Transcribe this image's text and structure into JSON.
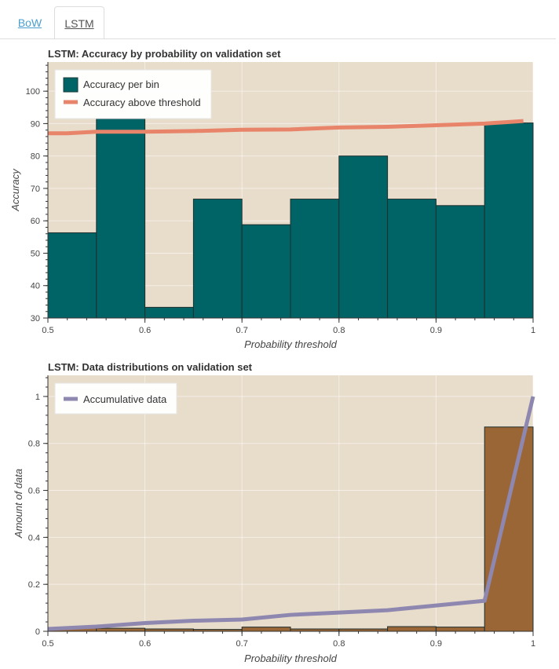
{
  "tabs": [
    {
      "label": "BoW",
      "active": false
    },
    {
      "label": "LSTM",
      "active": true
    }
  ],
  "chart_data": [
    {
      "type": "bar",
      "title": "LSTM: Accuracy by probability on validation set",
      "xlabel": "Probability threshold",
      "ylabel": "Accuracy",
      "xlim": [
        0.5,
        1.0
      ],
      "ylim": [
        30,
        109
      ],
      "xticks": [
        "0.5",
        "0.6",
        "0.7",
        "0.8",
        "0.9",
        "1"
      ],
      "yticks": [
        "30",
        "40",
        "50",
        "60",
        "70",
        "80",
        "90",
        "100"
      ],
      "grid": true,
      "background": "#e8dccb",
      "legend_position": "top-left",
      "series": [
        {
          "name": "Accuracy per bin",
          "kind": "bar",
          "color": "#006466",
          "bins": [
            [
              0.5,
              0.55
            ],
            [
              0.55,
              0.6
            ],
            [
              0.6,
              0.65
            ],
            [
              0.65,
              0.7
            ],
            [
              0.7,
              0.75
            ],
            [
              0.75,
              0.8
            ],
            [
              0.8,
              0.85
            ],
            [
              0.85,
              0.9
            ],
            [
              0.9,
              0.95
            ],
            [
              0.95,
              1.0
            ]
          ],
          "values": [
            56.3,
            91.5,
            33.3,
            66.7,
            58.8,
            66.7,
            80.0,
            66.7,
            64.7,
            90.2
          ]
        },
        {
          "name": "Accuracy above threshold",
          "kind": "line",
          "color": "#e8846a",
          "x": [
            0.5,
            0.52,
            0.55,
            0.6,
            0.65,
            0.7,
            0.75,
            0.8,
            0.85,
            0.9,
            0.95,
            0.99
          ],
          "y": [
            87.0,
            87.0,
            87.5,
            87.5,
            87.7,
            88.1,
            88.2,
            88.8,
            89.0,
            89.5,
            90.0,
            90.8
          ]
        }
      ]
    },
    {
      "type": "bar",
      "title": "LSTM: Data distributions on validation set",
      "xlabel": "Probability threshold",
      "ylabel": "Amount of data",
      "xlim": [
        0.5,
        1.0
      ],
      "ylim": [
        0,
        1.09
      ],
      "xticks": [
        "0.5",
        "0.6",
        "0.7",
        "0.8",
        "0.9",
        "1"
      ],
      "yticks": [
        "0",
        "0.2",
        "0.4",
        "0.6",
        "0.8",
        "1"
      ],
      "grid": true,
      "background": "#e8dccb",
      "legend_position": "top-left",
      "series": [
        {
          "kind": "bar",
          "color": "#9b6636",
          "bins": [
            [
              0.5,
              0.55
            ],
            [
              0.55,
              0.6
            ],
            [
              0.6,
              0.65
            ],
            [
              0.65,
              0.7
            ],
            [
              0.7,
              0.75
            ],
            [
              0.75,
              0.8
            ],
            [
              0.8,
              0.85
            ],
            [
              0.85,
              0.9
            ],
            [
              0.9,
              0.95
            ],
            [
              0.95,
              1.0
            ]
          ],
          "values": [
            0.016,
            0.013,
            0.01,
            0.008,
            0.018,
            0.01,
            0.01,
            0.02,
            0.018,
            0.87
          ]
        },
        {
          "name": "Accumulative data",
          "kind": "line",
          "color": "#8e87b0",
          "x": [
            0.5,
            0.55,
            0.6,
            0.65,
            0.7,
            0.75,
            0.8,
            0.85,
            0.9,
            0.95,
            1.0
          ],
          "y": [
            0.01,
            0.02,
            0.035,
            0.045,
            0.05,
            0.07,
            0.08,
            0.09,
            0.11,
            0.13,
            1.0
          ]
        }
      ]
    }
  ]
}
